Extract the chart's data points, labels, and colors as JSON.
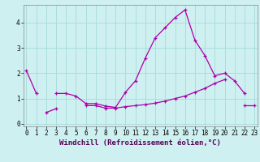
{
  "title": "",
  "xlabel": "Windchill (Refroidissement éolien,°C)",
  "background_color": "#cff0f0",
  "grid_color": "#aadddd",
  "line_color": "#aa00aa",
  "x": [
    0,
    1,
    2,
    3,
    4,
    5,
    6,
    7,
    8,
    9,
    10,
    11,
    12,
    13,
    14,
    15,
    16,
    17,
    18,
    19,
    20,
    21,
    22,
    23
  ],
  "y1": [
    2.1,
    1.2,
    null,
    1.2,
    1.2,
    1.1,
    0.8,
    0.8,
    0.7,
    0.65,
    1.25,
    1.7,
    2.6,
    3.4,
    3.8,
    4.2,
    4.5,
    3.3,
    2.7,
    1.9,
    2.0,
    1.7,
    1.2,
    null
  ],
  "y2": [
    null,
    null,
    0.45,
    0.6,
    null,
    null,
    0.72,
    0.72,
    0.62,
    0.62,
    0.68,
    0.72,
    0.76,
    0.82,
    0.9,
    1.0,
    1.1,
    1.25,
    1.4,
    1.6,
    1.75,
    null,
    0.72,
    0.72
  ],
  "ylim": [
    -0.1,
    4.7
  ],
  "xlim": [
    -0.3,
    23.3
  ],
  "yticks": [
    0,
    1,
    2,
    3,
    4
  ],
  "xticks": [
    0,
    1,
    2,
    3,
    4,
    5,
    6,
    7,
    8,
    9,
    10,
    11,
    12,
    13,
    14,
    15,
    16,
    17,
    18,
    19,
    20,
    21,
    22,
    23
  ],
  "tick_fontsize": 5.5,
  "xlabel_fontsize": 6.5
}
